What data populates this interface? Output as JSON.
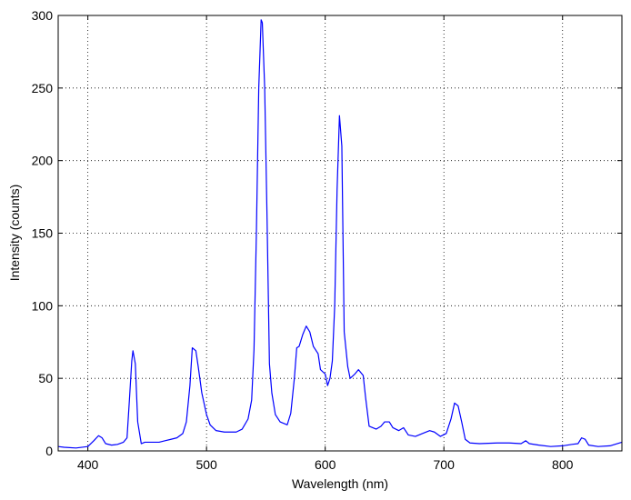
{
  "chart_data": {
    "type": "line",
    "xlabel": "Wavelength (nm)",
    "ylabel": "Intensity (counts)",
    "x": [
      375,
      380,
      390,
      400,
      405,
      409,
      412,
      415,
      420,
      425,
      430,
      433,
      435,
      437,
      438,
      440,
      442,
      445,
      448,
      455,
      460,
      465,
      470,
      475,
      480,
      483,
      486,
      488,
      491,
      493,
      496,
      500,
      503,
      508,
      515,
      525,
      530,
      535,
      538,
      540,
      542,
      544,
      546,
      547,
      549,
      551,
      553,
      555,
      558,
      562,
      568,
      571,
      574,
      576,
      578,
      581,
      584,
      587,
      590,
      594,
      596,
      600,
      602,
      604,
      606,
      608,
      610,
      612,
      614,
      616,
      619,
      621,
      625,
      628,
      632,
      634,
      637,
      643,
      647,
      650,
      654,
      657,
      662,
      666,
      670,
      676,
      682,
      688,
      692,
      697,
      702,
      706,
      709,
      712,
      715,
      718,
      722,
      730,
      745,
      755,
      765,
      769,
      772,
      780,
      790,
      800,
      808,
      813,
      816,
      819,
      822,
      830,
      840,
      850
    ],
    "series": [
      {
        "color": "#0000ff",
        "values": [
          3,
          2.5,
          2,
          3,
          7,
          10.5,
          9,
          5,
          4,
          4.5,
          6,
          9,
          35,
          62,
          69,
          60,
          20,
          5,
          6,
          6,
          6,
          7,
          8,
          9,
          12,
          20,
          45,
          71,
          69,
          58,
          40,
          25,
          18,
          14,
          13,
          13,
          15,
          22,
          35,
          70,
          150,
          250,
          297,
          295,
          250,
          160,
          60,
          40,
          25,
          20,
          18,
          26,
          50,
          71,
          72,
          80,
          86,
          82,
          72,
          67,
          56,
          53,
          45,
          50,
          62,
          100,
          180,
          231,
          210,
          82,
          58,
          50,
          53,
          56,
          52,
          37,
          17,
          15,
          17,
          20,
          20,
          16,
          14,
          16,
          11,
          10,
          12,
          14,
          13,
          10,
          12,
          22,
          33,
          31,
          20,
          8,
          5.5,
          5,
          5.5,
          5.5,
          5,
          7,
          5,
          4,
          3,
          3.5,
          4.5,
          5,
          9,
          8,
          4,
          3,
          3.5,
          6
        ]
      }
    ],
    "xlim": [
      375,
      850
    ],
    "ylim": [
      0,
      300
    ],
    "xticks": [
      400,
      500,
      600,
      700,
      800
    ],
    "yticks": [
      0,
      50,
      100,
      150,
      200,
      250,
      300
    ],
    "grid": true
  }
}
